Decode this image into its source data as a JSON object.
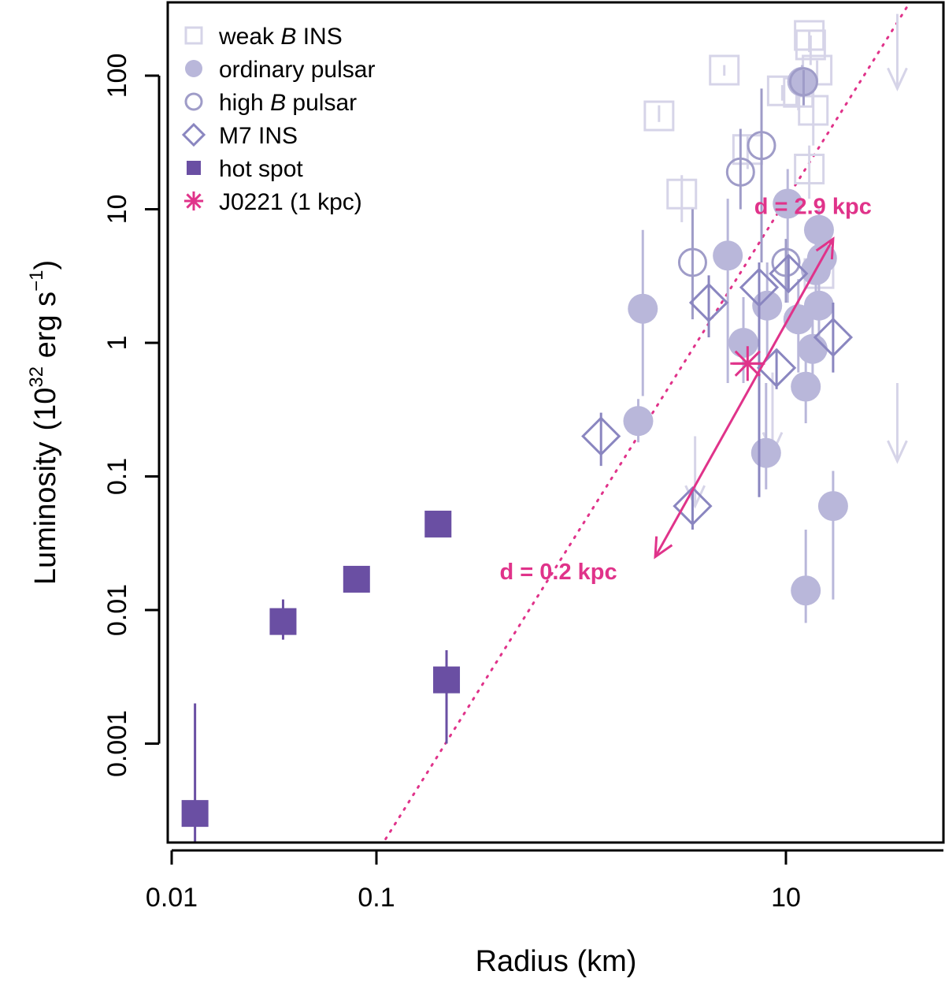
{
  "chart_data": {
    "type": "scatter",
    "xlabel": "Radius (km)",
    "ylabel": {
      "main": "Luminosity",
      "unit_prefix": "(10",
      "exp1": "32",
      "unit_mid": " erg s",
      "exp2": "−1",
      "unit_close": ")"
    },
    "xscale": "log",
    "yscale": "log",
    "xlim": [
      0.01,
      50
    ],
    "ylim": [
      0.00015,
      300
    ],
    "xticks": [
      {
        "value": 0.01,
        "label": "0.01"
      },
      {
        "value": 0.1,
        "label": "0.1"
      },
      {
        "value": 10,
        "label": "10"
      }
    ],
    "yticks": [
      {
        "value": 0.001,
        "label": "0.001"
      },
      {
        "value": 0.01,
        "label": "0.01"
      },
      {
        "value": 0.1,
        "label": "0.1"
      },
      {
        "value": 1,
        "label": "1"
      },
      {
        "value": 10,
        "label": "10"
      },
      {
        "value": 100,
        "label": "100"
      }
    ],
    "colors": {
      "weak": "#d6d4e8",
      "ordinary": "#b9b7da",
      "highb": "#9f9cc8",
      "m7": "#8a86c0",
      "hotspot": "#6a4fa3",
      "j0221": "#e0338a"
    },
    "series": [
      {
        "name": "weak B INS",
        "legend": [
          "weak ",
          "B",
          " INS"
        ],
        "marker": "open-square",
        "color_key": "weak",
        "points": [
          {
            "x": 2.4,
            "y": 50,
            "ylo": 45,
            "yhi": 60
          },
          {
            "x": 3.1,
            "y": 13,
            "ylo": 8,
            "yhi": 18
          },
          {
            "x": 5.0,
            "y": 110,
            "ylo": 100,
            "yhi": 120
          },
          {
            "x": 6.5,
            "y": 28,
            "ylo": 20,
            "yhi": 35
          },
          {
            "x": 9.6,
            "y": 77,
            "ylo": 65,
            "yhi": 85
          },
          {
            "x": 11.5,
            "y": 75,
            "ylo": 55,
            "yhi": 90
          },
          {
            "x": 13.0,
            "y": 200,
            "ylo": 150,
            "yhi": 220
          },
          {
            "x": 13.2,
            "y": 170,
            "ylo": 120,
            "yhi": 200
          },
          {
            "x": 13.6,
            "y": 55,
            "ylo": 30,
            "yhi": 100
          },
          {
            "x": 14.2,
            "y": 110,
            "ylo": 90,
            "yhi": 130
          },
          {
            "x": 13.0,
            "y": 20,
            "ylo": 12,
            "yhi": 30
          },
          {
            "x": 14.5,
            "y": 3.3,
            "ylo": 2.5,
            "yhi": 4
          }
        ],
        "upper_limits": [
          {
            "x": 35,
            "y": 290,
            "ylow": 80
          },
          {
            "x": 35,
            "y": 0.5,
            "ylow": 0.13
          },
          {
            "x": 3.6,
            "y": 0.2,
            "ylow": 0.06
          },
          {
            "x": 8.6,
            "y": 0.6,
            "ylow": 0.15
          }
        ]
      },
      {
        "name": "ordinary pulsar",
        "legend": [
          "ordinary pulsar"
        ],
        "marker": "filled-circle",
        "color_key": "ordinary",
        "points": [
          {
            "x": 2.0,
            "y": 1.8,
            "ylo": 0.4,
            "yhi": 7
          },
          {
            "x": 1.9,
            "y": 0.26,
            "ylo": 0.18,
            "yhi": 0.38
          },
          {
            "x": 5.2,
            "y": 4.5,
            "ylo": 0.5,
            "yhi": 12
          },
          {
            "x": 6.2,
            "y": 1.0,
            "ylo": 0.5,
            "yhi": 2.2
          },
          {
            "x": 8.0,
            "y": 0.15,
            "ylo": 0.08,
            "yhi": 0.5
          },
          {
            "x": 8.1,
            "y": 1.9,
            "ylo": 0.8,
            "yhi": 4
          },
          {
            "x": 10.2,
            "y": 11,
            "ylo": 2,
            "yhi": 20
          },
          {
            "x": 11.5,
            "y": 1.5,
            "ylo": 0.6,
            "yhi": 3
          },
          {
            "x": 12.5,
            "y": 0.47,
            "ylo": 0.25,
            "yhi": 1
          },
          {
            "x": 13.5,
            "y": 0.9,
            "ylo": 0.4,
            "yhi": 2
          },
          {
            "x": 14.0,
            "y": 3.5,
            "ylo": 2,
            "yhi": 6
          },
          {
            "x": 14.5,
            "y": 1.9,
            "ylo": 1,
            "yhi": 3
          },
          {
            "x": 14.5,
            "y": 7,
            "ylo": 5,
            "yhi": 10
          },
          {
            "x": 15.0,
            "y": 4.3,
            "ylo": 3,
            "yhi": 6
          },
          {
            "x": 12.0,
            "y": 90,
            "ylo": 70,
            "yhi": 120
          },
          {
            "x": 12.5,
            "y": 0.014,
            "ylo": 0.008,
            "yhi": 0.04
          },
          {
            "x": 17.0,
            "y": 0.06,
            "ylo": 0.012,
            "yhi": 0.11
          }
        ]
      },
      {
        "name": "high B pulsar",
        "legend": [
          "high ",
          "B",
          " pulsar"
        ],
        "marker": "open-circle",
        "color_key": "highb",
        "points": [
          {
            "x": 3.5,
            "y": 4,
            "ylo": 1.5,
            "yhi": 10
          },
          {
            "x": 6.0,
            "y": 19,
            "ylo": 10,
            "yhi": 40
          },
          {
            "x": 7.6,
            "y": 30,
            "ylo": 4,
            "yhi": 80
          },
          {
            "x": 10.0,
            "y": 4,
            "ylo": 2,
            "yhi": 6
          },
          {
            "x": 12.2,
            "y": 90,
            "ylo": 60,
            "yhi": 110
          }
        ]
      },
      {
        "name": "M7 INS",
        "legend": [
          "M7 INS"
        ],
        "marker": "open-diamond",
        "color_key": "m7",
        "points": [
          {
            "x": 1.25,
            "y": 0.2,
            "ylo": 0.12,
            "yhi": 0.3
          },
          {
            "x": 3.5,
            "y": 0.06,
            "ylo": 0.04,
            "yhi": 0.08
          },
          {
            "x": 4.2,
            "y": 2.0,
            "ylo": 1.1,
            "yhi": 3.2
          },
          {
            "x": 7.4,
            "y": 2.6,
            "ylo": 0.07,
            "yhi": 4
          },
          {
            "x": 9.0,
            "y": 0.65,
            "ylo": 0.45,
            "yhi": 0.9
          },
          {
            "x": 10.3,
            "y": 3.3,
            "ylo": 2.5,
            "yhi": 4.5
          },
          {
            "x": 17.0,
            "y": 1.1,
            "ylo": 0.6,
            "yhi": 2
          }
        ]
      },
      {
        "name": "hot spot",
        "legend": [
          "hot spot"
        ],
        "marker": "filled-square",
        "color_key": "hotspot",
        "points": [
          {
            "x": 0.013,
            "y": 0.0003,
            "ylo": 0.00012,
            "yhi": 0.002
          },
          {
            "x": 0.035,
            "y": 0.0082,
            "ylo": 0.006,
            "yhi": 0.012
          },
          {
            "x": 0.08,
            "y": 0.017,
            "ylo": 0.015,
            "yhi": 0.019
          },
          {
            "x": 0.2,
            "y": 0.044,
            "ylo": 0.04,
            "yhi": 0.048
          },
          {
            "x": 0.22,
            "y": 0.003,
            "ylo": 0.001,
            "yhi": 0.005
          }
        ]
      },
      {
        "name": "J0221 (1 kpc)",
        "legend": [
          "J0221 (1 kpc)"
        ],
        "marker": "asterisk",
        "color_key": "j0221",
        "points": [
          {
            "x": 6.5,
            "y": 0.7,
            "xlo": 5.5,
            "xhi": 7.6
          }
        ]
      }
    ],
    "distance_line": {
      "x": [
        0.1,
        50
      ],
      "y": [
        0.00015,
        600
      ]
    },
    "arrow": {
      "from": {
        "x": 2.3,
        "y": 0.025
      },
      "to": {
        "x": 17.0,
        "y": 6.0
      }
    },
    "annotations": [
      {
        "text": "d = 2.9 kpc",
        "x": 7.0,
        "y": 9.2
      },
      {
        "text": "d = 0.2 kpc",
        "x": 0.4,
        "y": 0.017
      }
    ]
  }
}
